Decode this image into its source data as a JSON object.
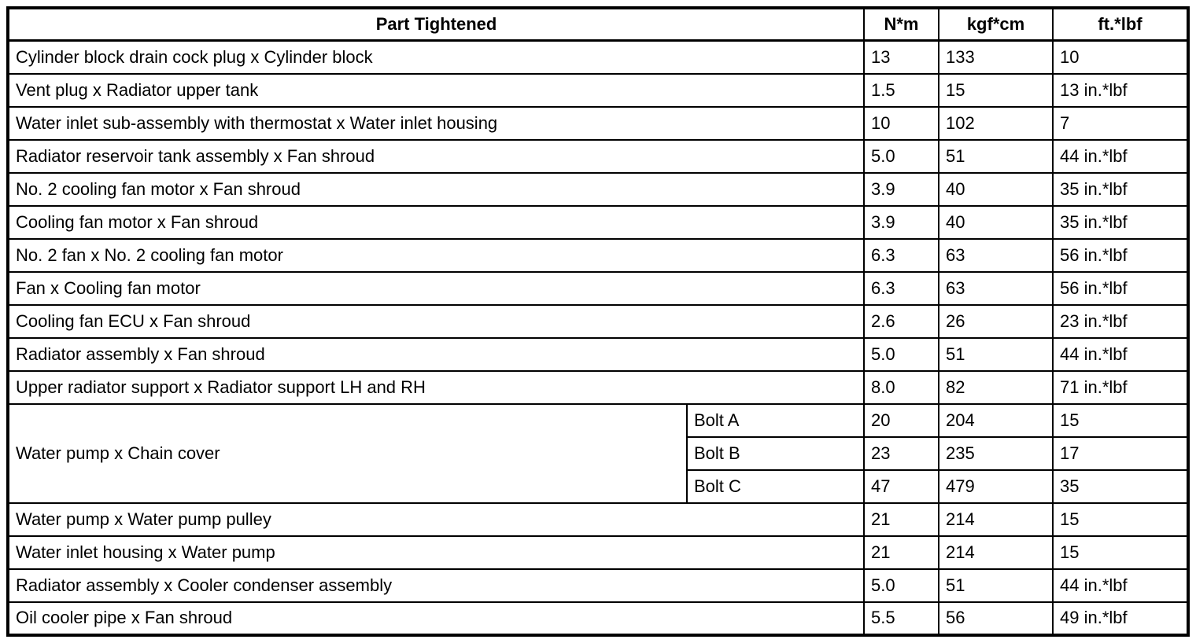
{
  "table": {
    "headers": {
      "part": "Part Tightened",
      "nm": "N*m",
      "kgfcm": "kgf*cm",
      "ftlbf": "ft.*lbf"
    },
    "rows": [
      {
        "part": "Cylinder block drain cock plug x Cylinder block",
        "nm": "13",
        "kgfcm": "133",
        "ftlbf": "10"
      },
      {
        "part": "Vent plug x Radiator upper tank",
        "nm": "1.5",
        "kgfcm": "15",
        "ftlbf": "13 in.*lbf"
      },
      {
        "part": "Water inlet sub-assembly with thermostat x Water inlet housing",
        "nm": "10",
        "kgfcm": "102",
        "ftlbf": "7"
      },
      {
        "part": "Radiator reservoir tank assembly x Fan shroud",
        "nm": "5.0",
        "kgfcm": "51",
        "ftlbf": "44 in.*lbf"
      },
      {
        "part": "No. 2 cooling fan motor x Fan shroud",
        "nm": "3.9",
        "kgfcm": "40",
        "ftlbf": "35 in.*lbf"
      },
      {
        "part": "Cooling fan motor x Fan shroud",
        "nm": "3.9",
        "kgfcm": "40",
        "ftlbf": "35 in.*lbf"
      },
      {
        "part": "No. 2 fan x No. 2 cooling fan motor",
        "nm": "6.3",
        "kgfcm": "63",
        "ftlbf": "56 in.*lbf"
      },
      {
        "part": "Fan x Cooling fan motor",
        "nm": "6.3",
        "kgfcm": "63",
        "ftlbf": "56 in.*lbf"
      },
      {
        "part": "Cooling fan ECU x Fan shroud",
        "nm": "2.6",
        "kgfcm": "26",
        "ftlbf": "23 in.*lbf"
      },
      {
        "part": "Radiator assembly x Fan shroud",
        "nm": "5.0",
        "kgfcm": "51",
        "ftlbf": "44 in.*lbf"
      },
      {
        "part": "Upper radiator support x Radiator support LH and RH",
        "nm": "8.0",
        "kgfcm": "82",
        "ftlbf": "71 in.*lbf"
      },
      {
        "part": "Water pump x Chain cover",
        "part_rowspan": 3,
        "sub": "Bolt A",
        "nm": "20",
        "kgfcm": "204",
        "ftlbf": "15"
      },
      {
        "sub": "Bolt B",
        "nm": "23",
        "kgfcm": "235",
        "ftlbf": "17"
      },
      {
        "sub": "Bolt C",
        "nm": "47",
        "kgfcm": "479",
        "ftlbf": "35"
      },
      {
        "part": "Water pump x Water pump pulley",
        "nm": "21",
        "kgfcm": "214",
        "ftlbf": "15"
      },
      {
        "part": "Water inlet housing x Water pump",
        "nm": "21",
        "kgfcm": "214",
        "ftlbf": "15"
      },
      {
        "part": "Radiator assembly x Cooler condenser assembly",
        "nm": "5.0",
        "kgfcm": "51",
        "ftlbf": "44 in.*lbf"
      },
      {
        "part": "Oil cooler pipe x Fan shroud",
        "nm": "5.5",
        "kgfcm": "56",
        "ftlbf": "49 in.*lbf"
      }
    ],
    "colors": {
      "border": "#000000",
      "text": "#000000",
      "background": "#ffffff"
    }
  }
}
